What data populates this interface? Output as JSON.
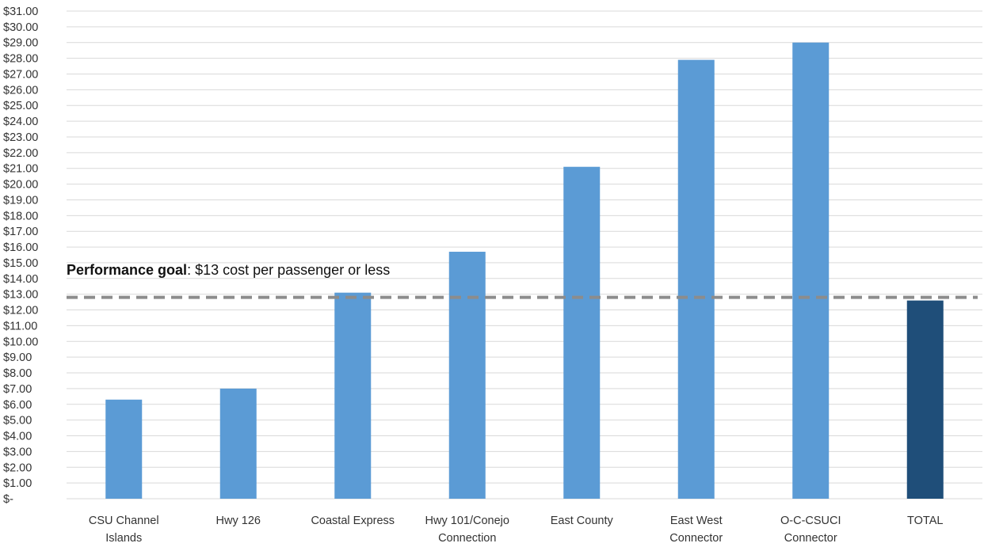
{
  "chart_data": {
    "type": "bar",
    "categories": [
      [
        "CSU Channel",
        "Islands"
      ],
      [
        "Hwy 126"
      ],
      [
        "Coastal Express"
      ],
      [
        "Hwy 101/Conejo",
        "Connection"
      ],
      [
        "East County"
      ],
      [
        "East West",
        "Connector"
      ],
      [
        "O-C-CSUCI",
        "Connector"
      ],
      [
        "TOTAL"
      ]
    ],
    "values": [
      6.3,
      7.0,
      13.1,
      15.7,
      21.1,
      27.9,
      29.0,
      12.6
    ],
    "ylim": [
      0,
      31
    ],
    "y_step": 1,
    "y_tick_format": "$N.00",
    "y_zero_label": "$-",
    "grid": true,
    "colors": {
      "bar": "#5b9bd5",
      "total_bar": "#1f4e79",
      "goal_line": "#8c8c8c",
      "grid": "#d9d9d9"
    },
    "highlight_index": 7,
    "annotation": {
      "bold": "Performance goal",
      "rest": ":  $13  cost per passenger or less",
      "goal_value": 12.8
    }
  }
}
